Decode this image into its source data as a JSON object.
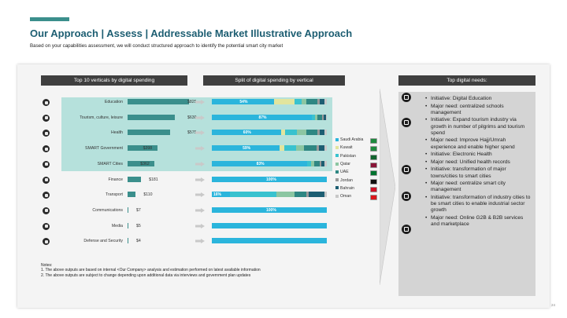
{
  "slide": {
    "title": "Our Approach | Assess | Addressable Market Illustrative Approach",
    "subtitle": "Based on your capabilities assessment, we will conduct structured approach to identify the potential smart city market",
    "page_number": "24",
    "headers": {
      "left": "Top 10 verticals by digital spending",
      "middle": "Split of digital spending by vertical",
      "right": "Top digital needs:"
    },
    "notes": [
      "Notes:",
      "1. The above outputs are based on internal <Our Company> analysis and estimation performed on latest available information",
      "2. The above outputs are subject to change depending upon additional data via interviews and government plan updates"
    ],
    "needs": [
      "Initiative: Digital Education",
      "Major need: centralized schools management",
      "Initiative: Expand tourism industry via growth in number of pilgrims and tourism spend",
      "Major need: Improve Hajj/Umrah experience and enable higher spend",
      "Initiative: Electronic Health",
      "Major need: Unified health records",
      "Initiative: transformation of major towns/cities to smart cities",
      "Major need: centralize smart city management",
      "Initiative: transformation of industry cities to be smart cities to enable industrial sector growth",
      "Major need: Online G2B & B2B services and marketplace"
    ],
    "need_icons": [
      "education-icon",
      "briefcase-icon",
      "heartbeat-icon",
      "smart-city-icon",
      "smart-city-icon"
    ]
  },
  "chart_data": [
    {
      "type": "bar",
      "orientation": "horizontal",
      "categories": [
        "Education",
        "Tourism, culture, leisure",
        "Health",
        "SMART Government",
        "SMART Cities",
        "Finance",
        "Transport",
        "Communications",
        "Media",
        "Defense and Security"
      ],
      "values": [
        825,
        630,
        575,
        398,
        362,
        181,
        110,
        7,
        5,
        4
      ],
      "value_labels": [
        "$825",
        "$630",
        "$575",
        "$398",
        "$362",
        "$181",
        "$110",
        "$7",
        "$5",
        "$4"
      ],
      "highlighted": [
        "Education",
        "Tourism, culture, leisure",
        "Health",
        "SMART Government",
        "SMART Cities"
      ],
      "icons": [
        "education-icon",
        "tourism-icon",
        "health-icon",
        "government-icon",
        "smart-city-icon",
        "finance-icon",
        "transport-icon",
        "communications-icon",
        "media-icon",
        "defense-icon"
      ],
      "color": "#3b8f8c"
    },
    {
      "type": "bar",
      "orientation": "horizontal",
      "stacked": true,
      "normalized": true,
      "categories": [
        "Education",
        "Tourism, culture, leisure",
        "Health",
        "SMART Government",
        "SMART Cities",
        "Finance",
        "Transport",
        "Communications",
        "Media",
        "Defense and Security"
      ],
      "series": [
        {
          "name": "Saudi Arabia",
          "color": "#2bb5dc",
          "values": [
            54,
            87,
            60,
            59,
            83,
            100,
            16,
            100,
            100,
            100
          ]
        },
        {
          "name": "Kuwait",
          "color": "#e2e59e",
          "values": [
            18,
            0,
            4,
            4,
            0,
            0,
            0,
            0,
            0,
            0
          ]
        },
        {
          "name": "Pakistan",
          "color": "#39c2cf",
          "values": [
            6,
            3,
            10,
            10,
            3,
            0,
            40,
            0,
            0,
            0
          ]
        },
        {
          "name": "Qatar",
          "color": "#8cc6a2",
          "values": [
            4,
            2,
            8,
            7,
            3,
            0,
            16,
            0,
            0,
            0
          ]
        },
        {
          "name": "UAE",
          "color": "#2f8783",
          "values": [
            10,
            4,
            10,
            11,
            5,
            0,
            10,
            0,
            0,
            0
          ]
        },
        {
          "name": "Jordan",
          "color": "#9a9a9a",
          "values": [
            2,
            1,
            2,
            2,
            1,
            0,
            2,
            0,
            0,
            0
          ]
        },
        {
          "name": "Bahrain",
          "color": "#1d5e72",
          "values": [
            4,
            2,
            4,
            5,
            3,
            0,
            14,
            0,
            0,
            0
          ]
        },
        {
          "name": "Oman",
          "color": "#c8c8c8",
          "values": [
            2,
            1,
            2,
            2,
            2,
            0,
            2,
            0,
            0,
            0
          ]
        }
      ],
      "data_labels": [
        "54%",
        "87%",
        "60%",
        "59%",
        "83%",
        "100%",
        "16%",
        "100%",
        "",
        ""
      ],
      "legend_position": "right",
      "flag_icons": [
        "saudi-arabia-flag-icon",
        "kuwait-flag-icon",
        "pakistan-flag-icon",
        "qatar-flag-icon",
        "uae-flag-icon",
        "jordan-flag-icon",
        "bahrain-flag-icon",
        "oman-flag-icon"
      ],
      "flag_colors": [
        "#1e8a3e",
        "#1e8a3e",
        "#12642e",
        "#8a1538",
        "#00732f",
        "#111111",
        "#ce1126",
        "#db161b"
      ]
    }
  ]
}
